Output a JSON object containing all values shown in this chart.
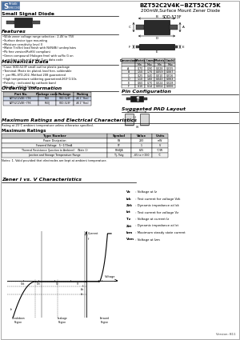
{
  "title1": "BZT52C2V4K~BZT52C75K",
  "title2": "200mW,Surface Mount Zener Diode",
  "subtitle": "Small Signal Diode",
  "package": "SOD-523F",
  "features_title": "Features",
  "features": [
    "Wide zener voltage range selection : 2.4V to 75V",
    "Surface device type mounting",
    "Moisture sensitivity level II",
    "Matte Tin(Sn) lead finish with Ni(Ni/Bi) underplates",
    "Pb free version(RoHS) compliant",
    "Green compound (Halogen free) with suffix G on",
    "  packing code and prefix G on data code"
  ],
  "mech_title": "Mechanical Data",
  "mech": [
    "Case: SOD-523F small outline plastic package",
    "Terminal: Matte tin plated, lead free, solderable",
    "  per MIL-STD-202, Method 208 guaranteed",
    "High temperature soldering guaranteed:260°C/10s",
    "Polarity : indicated by cathode band",
    "Weight : 1.50x0.5 mg"
  ],
  "order_title": "Ordering Information",
  "order_headers": [
    "Part No.",
    "Package code",
    "Package",
    "Packing"
  ],
  "order_rows": [
    [
      "BZT52C2V4K~75K",
      "R60",
      "SOD-523F",
      "4K 1\" Reel"
    ],
    [
      "BZT52C2V4K~75K",
      "R60J",
      "SOD-523F",
      "4K 1\" Reel"
    ]
  ],
  "maxrate_title": "Maximum Ratings and Electrical Characteristics",
  "maxrate_note": "Rating at 25°C ambient temperature unless otherwise specified.",
  "maxrat_head": "Maximum Ratings",
  "maxrat_headers": [
    "Type Number",
    "Symbol",
    "Value",
    "Units"
  ],
  "maxrat_rows": [
    [
      "Power Dissipation",
      "Pd",
      "200",
      "mW"
    ],
    [
      "Forward Voltage   5~170mA",
      "Vf",
      "1",
      "V"
    ],
    [
      "Thermal Resistance (Junction to Ambient)   (Note 1)",
      "RthθJA",
      "625",
      "°C/W"
    ],
    [
      "Junction and Storage Temperature Range",
      "Tj, Tstg",
      "-65 to +150",
      "°C"
    ]
  ],
  "note1": "Notes: 1. Valid provided that electrodes are kept at ambient temperature.",
  "zener_title": "Zener I vs. V Characteristics",
  "pin_config_title": "Pin Configuration",
  "pad_title": "Suggested PAD Layout",
  "dim_headers": [
    "Dimensions",
    "Min",
    "Max",
    "Min",
    "Max"
  ],
  "dim_metric_mm": "Metric (mm)",
  "dim_metric_in": "Metric (inch)",
  "dim_rows": [
    [
      "A",
      "0.70",
      "0.90",
      "0.028",
      "0.035"
    ],
    [
      "B",
      "1.50",
      "1.70",
      "0.059",
      "0.067"
    ],
    [
      "C",
      "0.25",
      "0.40",
      "0.010",
      "0.016"
    ],
    [
      "D",
      "1.10",
      "1.60",
      "0.043",
      "0.063"
    ],
    [
      "E",
      "0.60",
      "0.70",
      "0.024",
      "0.028"
    ],
    [
      "F",
      "0.10",
      "0.14",
      "0.004",
      "0.006"
    ]
  ],
  "version": "Version: B11",
  "bg_color": "#ffffff",
  "order_row_bg": [
    "#c8d4e8",
    "#e8e8f0"
  ],
  "legend_items": [
    [
      "Vz",
      " : Voltage at Iz"
    ],
    [
      "Izk",
      " : Test current for voltage Vzk"
    ],
    [
      "Zzk",
      " : Dynamic impedance at Izk"
    ],
    [
      "Izt",
      " : Test current for voltage Vz"
    ],
    [
      "Tz",
      " : Voltage at current Iz"
    ],
    [
      "Zzt",
      " : Dynamic impedance at Izt"
    ],
    [
      "Izm",
      " : Maximum steady state current"
    ],
    [
      "Vzm",
      " : Voltage at Izm"
    ]
  ]
}
